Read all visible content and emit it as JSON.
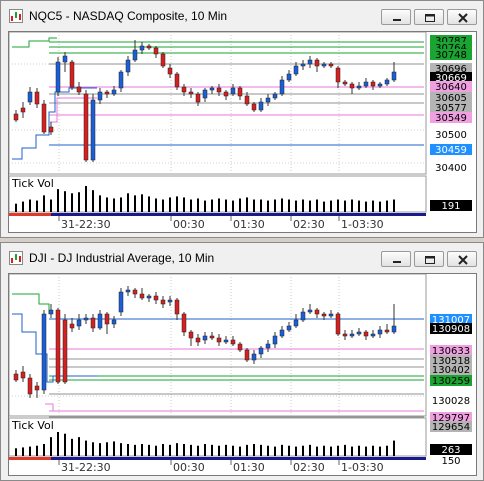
{
  "windows": [
    {
      "title": "NQC5 - NASDAQ Composite, 10 Min",
      "volume_label": "Tick Vol",
      "volume_value": "191",
      "time_labels": [
        "31-22:30",
        "00:30",
        "01:30",
        "02:30",
        "1-03:30"
      ],
      "price_tags": [
        {
          "text": "30787",
          "bg": "#1aa532",
          "fg": "#000000"
        },
        {
          "text": "30764",
          "bg": "#1aa532",
          "fg": "#000000"
        },
        {
          "text": "30748",
          "bg": "#1aa532",
          "fg": "#000000"
        },
        {
          "text": "30696",
          "bg": "#b4b4b4",
          "fg": "#000000"
        },
        {
          "text": "30669",
          "bg": "#000000",
          "fg": "#ffffff"
        },
        {
          "text": "30640",
          "bg": "#f0a0e0",
          "fg": "#000000"
        },
        {
          "text": "30605",
          "bg": "#b4b4b4",
          "fg": "#000000"
        },
        {
          "text": "30577",
          "bg": "#b4b4b4",
          "fg": "#000000"
        },
        {
          "text": "30549",
          "bg": "#f0a0e0",
          "fg": "#000000"
        },
        {
          "text": "30500",
          "bg": "",
          "fg": "#000000"
        },
        {
          "text": "30459",
          "bg": "#1e90ff",
          "fg": "#ffffff"
        },
        {
          "text": "30400",
          "bg": "",
          "fg": "#000000"
        }
      ]
    },
    {
      "title": "DJI - DJ Industrial Average, 10 Min",
      "volume_label": "Tick Vol",
      "volume_value": "263",
      "volume_value2": "150",
      "time_labels": [
        "31-22:30",
        "00:30",
        "01:30",
        "02:30",
        "1-03:30"
      ],
      "price_tags": [
        {
          "text": "131007",
          "bg": "#1e90ff",
          "fg": "#ffffff"
        },
        {
          "text": "130908",
          "bg": "#000000",
          "fg": "#ffffff"
        },
        {
          "text": "130633",
          "bg": "#f0a0e0",
          "fg": "#000000"
        },
        {
          "text": "130518",
          "bg": "#b4b4b4",
          "fg": "#000000"
        },
        {
          "text": "130402",
          "bg": "#b4b4b4",
          "fg": "#000000"
        },
        {
          "text": "130259",
          "bg": "#1aa532",
          "fg": "#000000"
        },
        {
          "text": "130028",
          "bg": "",
          "fg": "#000000"
        },
        {
          "text": "129797",
          "bg": "#f0a0e0",
          "fg": "#000000"
        },
        {
          "text": "129654",
          "bg": "#b4b4b4",
          "fg": "#000000"
        }
      ]
    }
  ],
  "colors": {
    "up": "#1a5fd8",
    "down": "#d42020",
    "green": "#1aa532",
    "pink": "#e878d8",
    "gray": "#909090",
    "blue": "#1e60c8",
    "navy": "#1a1a8c"
  }
}
